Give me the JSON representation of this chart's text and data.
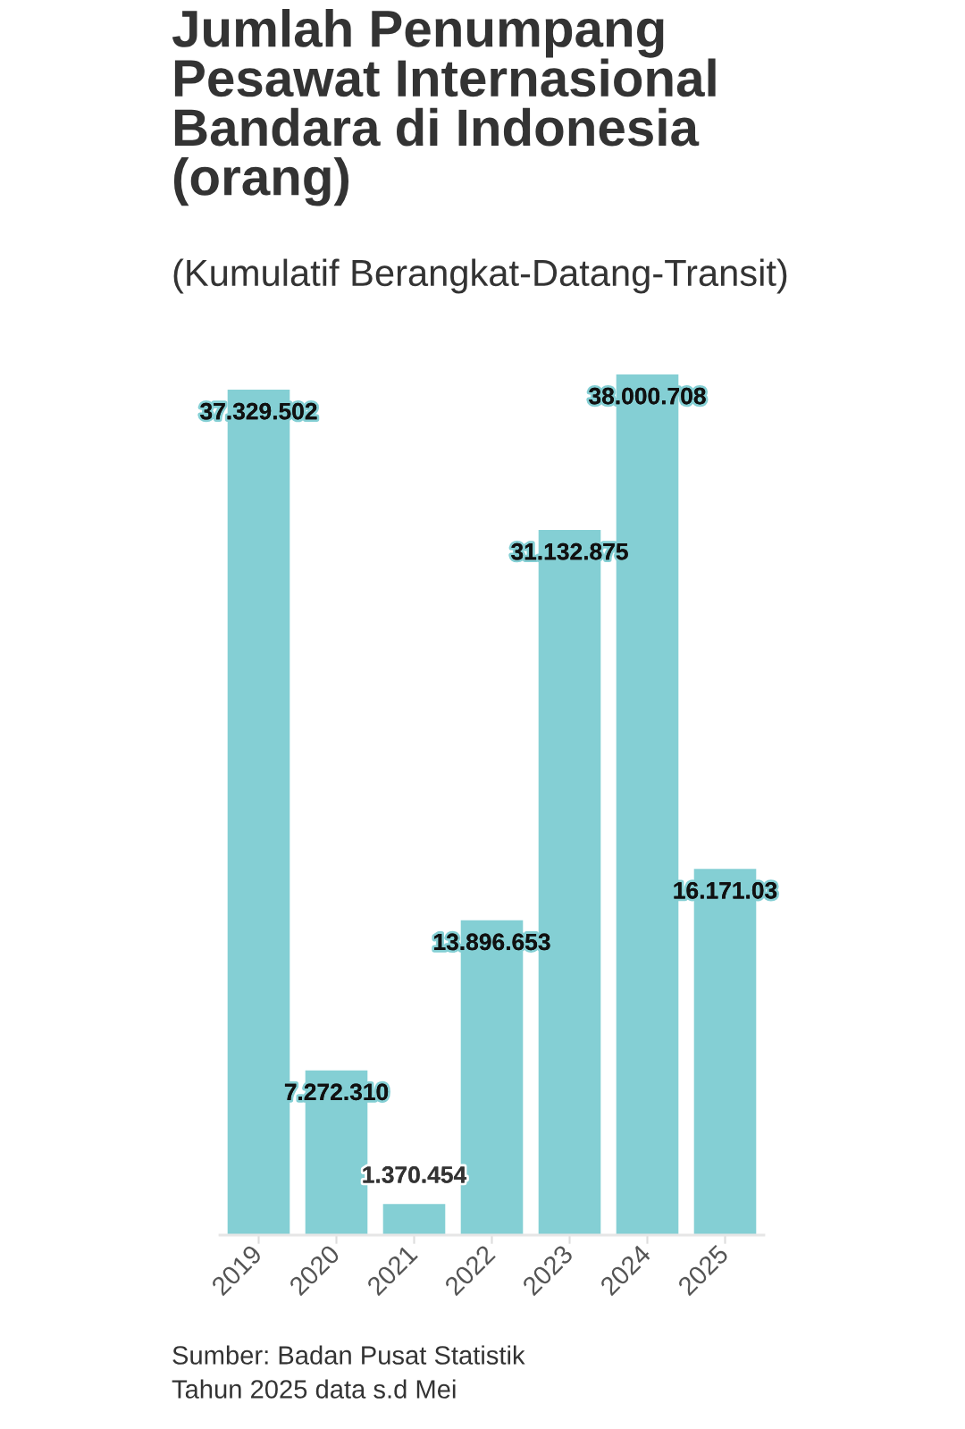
{
  "chart_data": {
    "type": "bar",
    "title": "Jumlah Penumpang\nPesawat Internasional\nBandara di Indonesia\n(orang)",
    "subtitle": "(Kumulatif Berangkat-Datang-Transit)",
    "categories": [
      "2019",
      "2020",
      "2021",
      "2022",
      "2023",
      "2024",
      "2025"
    ],
    "values": [
      37329502,
      7272310,
      1370454,
      13896653,
      31132875,
      38000708,
      16171030
    ],
    "value_labels": [
      "37.329.502",
      "7.272.310",
      "1.370.454",
      "13.896.653",
      "31.132.875",
      "38.000.708",
      "16.171.03"
    ],
    "color": "#84cfd4",
    "ylim": [
      0,
      38000708
    ],
    "tick_labels": "x",
    "annotations": [
      "Sumber: Badan Pusat Statistik",
      "Tahun 2025 data s.d Mei"
    ]
  }
}
